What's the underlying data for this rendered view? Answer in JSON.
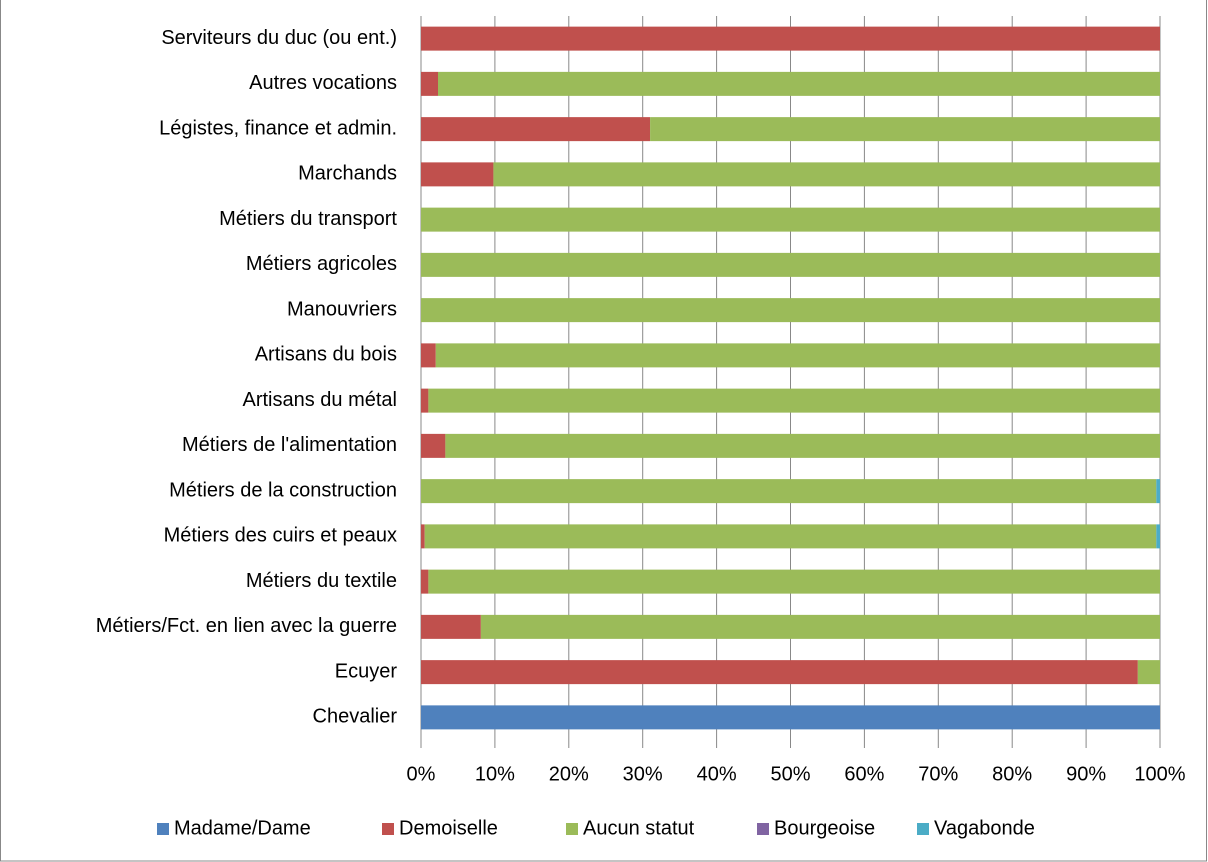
{
  "chart_data": {
    "type": "bar",
    "orientation": "horizontal",
    "stacked": true,
    "categories": [
      "Chevalier",
      "Ecuyer",
      "Métiers/Fct. en lien avec la guerre",
      "Métiers du textile",
      "Métiers des cuirs et peaux",
      "Métiers de la construction",
      "Métiers de l'alimentation",
      "Artisans du métal",
      "Artisans du bois",
      "Manouvriers",
      "Métiers agricoles",
      "Métiers du transport",
      "Marchands",
      "Légistes, finance et admin.",
      "Autres vocations",
      "Serviteurs du duc (ou ent.)"
    ],
    "series": [
      {
        "name": "Madame/Dame",
        "color": "#4f81bd",
        "values": [
          100,
          0,
          0,
          0,
          0,
          0,
          0,
          0,
          0,
          0,
          0,
          0,
          0,
          0,
          0,
          0
        ]
      },
      {
        "name": "Demoiselle",
        "color": "#c0504d",
        "values": [
          0,
          97,
          8.1,
          1,
          0.5,
          0,
          3.3,
          1,
          2,
          0,
          0,
          0,
          9.8,
          31,
          2.3,
          100
        ]
      },
      {
        "name": "Aucun statut",
        "color": "#9bbb59",
        "values": [
          0,
          3,
          91.9,
          99,
          99,
          99.5,
          96.7,
          99,
          98,
          100,
          100,
          100,
          90.2,
          69,
          97.7,
          0
        ]
      },
      {
        "name": "Bourgeoise",
        "color": "#8064a2",
        "values": [
          0,
          0,
          0,
          0,
          0,
          0,
          0,
          0,
          0,
          0,
          0,
          0,
          0,
          0,
          0,
          0
        ]
      },
      {
        "name": "Vagabonde",
        "color": "#4bacc6",
        "values": [
          0,
          0,
          0,
          0,
          0.5,
          0.5,
          0,
          0,
          0,
          0,
          0,
          0,
          0,
          0,
          0,
          0
        ]
      }
    ],
    "xlim": [
      0,
      100
    ],
    "xticks": [
      {
        "value": 0,
        "label": "0%"
      },
      {
        "value": 10,
        "label": "10%"
      },
      {
        "value": 20,
        "label": "20%"
      },
      {
        "value": 30,
        "label": "30%"
      },
      {
        "value": 40,
        "label": "40%"
      },
      {
        "value": 50,
        "label": "50%"
      },
      {
        "value": 60,
        "label": "60%"
      },
      {
        "value": 70,
        "label": "70%"
      },
      {
        "value": 80,
        "label": "80%"
      },
      {
        "value": 90,
        "label": "90%"
      },
      {
        "value": 100,
        "label": "100%"
      }
    ],
    "grid": true,
    "legend": "bottom"
  }
}
